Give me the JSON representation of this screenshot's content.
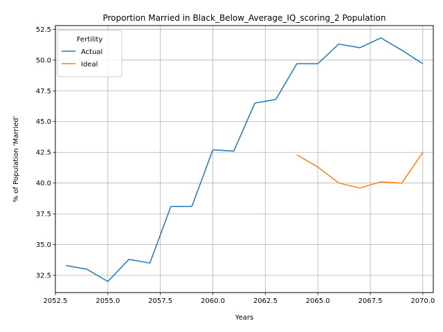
{
  "chart_data": {
    "type": "line",
    "title": "Proportion Married in Black_Below_Average_IQ_scoring_2 Population",
    "xlabel": "Years",
    "ylabel": "% of Population 'Married'",
    "xlim": [
      2052.5,
      2070.5
    ],
    "ylim": [
      31.1,
      52.8
    ],
    "xticks": [
      2052.5,
      2055.0,
      2057.5,
      2060.0,
      2062.5,
      2065.0,
      2067.5,
      2070.0
    ],
    "xtick_labels": [
      "2052.5",
      "2055.0",
      "2057.5",
      "2060.0",
      "2062.5",
      "2065.0",
      "2067.5",
      "2070.0"
    ],
    "yticks": [
      32.5,
      35.0,
      37.5,
      40.0,
      42.5,
      45.0,
      47.5,
      50.0,
      52.5
    ],
    "ytick_labels": [
      "32.5",
      "35.0",
      "37.5",
      "40.0",
      "42.5",
      "45.0",
      "47.5",
      "50.0",
      "52.5"
    ],
    "grid": true,
    "legend": {
      "title": "Fertility",
      "placement": "upper-left"
    },
    "series": [
      {
        "name": "Actual",
        "color": "#1f77b4",
        "x": [
          2053,
          2054,
          2055,
          2056,
          2057,
          2058,
          2059,
          2060,
          2061,
          2062,
          2063,
          2064,
          2065,
          2066,
          2067,
          2068,
          2069,
          2070
        ],
        "y": [
          33.3,
          33.0,
          32.0,
          33.8,
          33.5,
          38.1,
          38.1,
          42.7,
          42.6,
          46.5,
          46.8,
          49.7,
          49.7,
          51.3,
          51.0,
          51.8,
          50.8,
          49.7
        ]
      },
      {
        "name": "Ideal",
        "color": "#ff7f0e",
        "x": [
          2064,
          2065,
          2066,
          2067,
          2068,
          2069,
          2070
        ],
        "y": [
          42.3,
          41.3,
          40.0,
          39.6,
          40.1,
          40.0,
          42.5
        ]
      }
    ]
  }
}
